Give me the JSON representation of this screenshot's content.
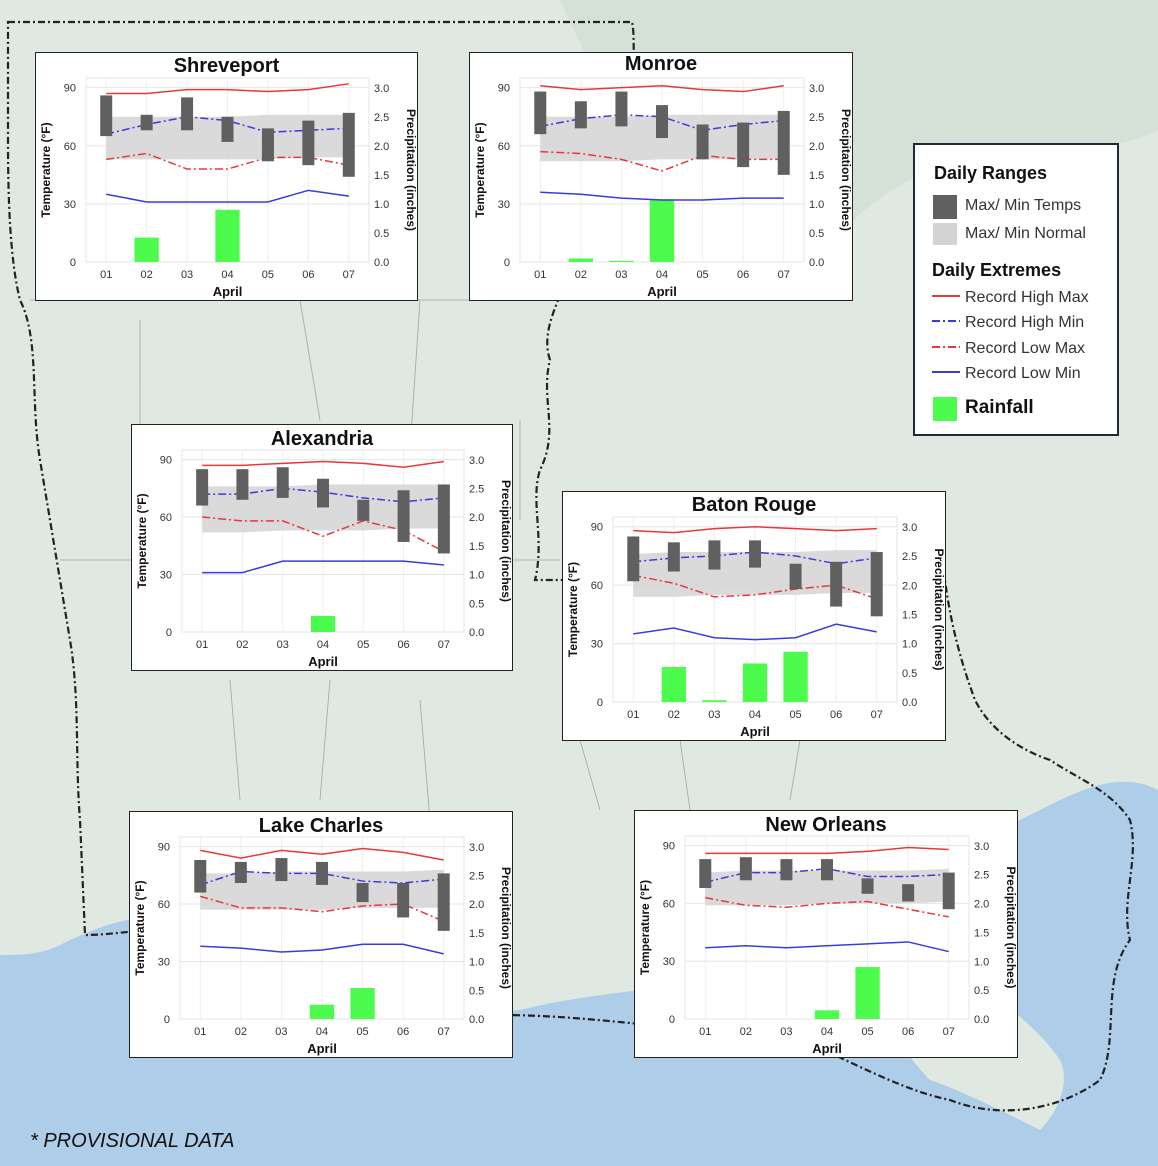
{
  "footnote": "* PROVISIONAL DATA",
  "legend": {
    "daily_ranges_title": "Daily Ranges",
    "max_min_temps": "Max/ Min Temps",
    "max_min_normal": "Max/ Min Normal",
    "daily_extremes_title": "Daily Extremes",
    "record_high_max": "Record High Max",
    "record_high_min": "Record High Min",
    "record_low_max": "Record Low Max",
    "record_low_min": "Record Low Min",
    "rainfall": "Rainfall"
  },
  "colors": {
    "record_high_max": "#e8383a",
    "record_high_min": "#3b3bdc",
    "record_low_max": "#e8383a",
    "record_low_min": "#3b3bdc",
    "temps_bar": "#606060",
    "normal_band": "#d3d3d3",
    "rainfall": "#4cfb4c",
    "map_land": "#dfe8e1",
    "map_water": "#aecde8"
  },
  "chart_data": [
    {
      "type": "bar",
      "title": "Shreveport",
      "xlabel": "April",
      "ylabel": "Temperature (°F)",
      "y2label": "Precipitation (inches)",
      "categories": [
        "01",
        "02",
        "03",
        "04",
        "05",
        "06",
        "07"
      ],
      "ylim": [
        0,
        95
      ],
      "y2lim": [
        0,
        3.17
      ],
      "yticks": [
        0,
        30,
        60,
        90
      ],
      "y2ticks": [
        0.0,
        0.5,
        1.0,
        1.5,
        2.0,
        2.5,
        3.0
      ],
      "temp_max": [
        86,
        76,
        85,
        75,
        69,
        73,
        77
      ],
      "temp_min": [
        65,
        68,
        68,
        62,
        52,
        50,
        44
      ],
      "normal_max": [
        75,
        75,
        75,
        75,
        76,
        76,
        76
      ],
      "normal_min": [
        53,
        53,
        53,
        53,
        53,
        54,
        54
      ],
      "record_high_max": [
        87,
        87,
        89,
        89,
        88,
        89,
        92
      ],
      "record_high_min": [
        66,
        71,
        75,
        73,
        67,
        68,
        69
      ],
      "record_low_max": [
        53,
        56,
        48,
        48,
        54,
        54,
        50
      ],
      "record_low_min": [
        35,
        31,
        31,
        31,
        31,
        37,
        34
      ],
      "rainfall": [
        0,
        0.42,
        0,
        0.9,
        0,
        0,
        0
      ]
    },
    {
      "type": "bar",
      "title": "Monroe",
      "xlabel": "April",
      "ylabel": "Temperature (°F)",
      "y2label": "Precipitation (inches)",
      "categories": [
        "01",
        "02",
        "03",
        "04",
        "05",
        "06",
        "07"
      ],
      "ylim": [
        0,
        95
      ],
      "y2lim": [
        0,
        3.17
      ],
      "yticks": [
        0,
        30,
        60,
        90
      ],
      "y2ticks": [
        0.0,
        0.5,
        1.0,
        1.5,
        2.0,
        2.5,
        3.0
      ],
      "temp_max": [
        88,
        83,
        88,
        81,
        71,
        72,
        78
      ],
      "temp_min": [
        66,
        69,
        70,
        64,
        53,
        49,
        45
      ],
      "normal_max": [
        75,
        75,
        75,
        76,
        76,
        76,
        76
      ],
      "normal_min": [
        52,
        52,
        52,
        53,
        53,
        53,
        53
      ],
      "record_high_max": [
        91,
        89,
        90,
        91,
        89,
        88,
        91
      ],
      "record_high_min": [
        70,
        74,
        76,
        75,
        68,
        71,
        73
      ],
      "record_low_max": [
        57,
        56,
        53,
        47,
        55,
        53,
        53
      ],
      "record_low_min": [
        36,
        35,
        33,
        32,
        32,
        33,
        33
      ],
      "rainfall": [
        0,
        0.06,
        0.02,
        1.08,
        0,
        0,
        0
      ]
    },
    {
      "type": "bar",
      "title": "Alexandria",
      "xlabel": "April",
      "ylabel": "Temperature (°F)",
      "y2label": "Precipitation (inches)",
      "categories": [
        "01",
        "02",
        "03",
        "04",
        "05",
        "06",
        "07"
      ],
      "ylim": [
        0,
        95
      ],
      "y2lim": [
        0,
        3.17
      ],
      "yticks": [
        0,
        30,
        60,
        90
      ],
      "y2ticks": [
        0.0,
        0.5,
        1.0,
        1.5,
        2.0,
        2.5,
        3.0
      ],
      "temp_max": [
        85,
        85,
        86,
        80,
        69,
        74,
        77
      ],
      "temp_min": [
        66,
        69,
        70,
        65,
        58,
        47,
        41
      ],
      "normal_max": [
        76,
        76,
        76,
        77,
        77,
        77,
        77
      ],
      "normal_min": [
        52,
        52,
        53,
        53,
        53,
        54,
        54
      ],
      "record_high_max": [
        87,
        87,
        88,
        89,
        88,
        86,
        89
      ],
      "record_high_min": [
        72,
        72,
        75,
        73,
        70,
        68,
        70
      ],
      "record_low_max": [
        60,
        58,
        58,
        50,
        58,
        53,
        42
      ],
      "record_low_min": [
        31,
        31,
        37,
        37,
        37,
        37,
        35
      ],
      "rainfall": [
        0,
        0,
        0,
        0.28,
        0,
        0,
        0
      ]
    },
    {
      "type": "bar",
      "title": "Baton Rouge",
      "xlabel": "April",
      "ylabel": "Temperature (°F)",
      "y2label": "Precipitation (inches)",
      "categories": [
        "01",
        "02",
        "03",
        "04",
        "05",
        "06",
        "07"
      ],
      "ylim": [
        0,
        95
      ],
      "y2lim": [
        0,
        3.17
      ],
      "yticks": [
        0,
        30,
        60,
        90
      ],
      "y2ticks": [
        0.0,
        0.5,
        1.0,
        1.5,
        2.0,
        2.5,
        3.0
      ],
      "temp_max": [
        85,
        82,
        83,
        83,
        71,
        72,
        77
      ],
      "temp_min": [
        62,
        67,
        68,
        69,
        58,
        49,
        44
      ],
      "normal_max": [
        76,
        77,
        77,
        77,
        77,
        78,
        78
      ],
      "normal_min": [
        54,
        54,
        55,
        55,
        55,
        56,
        56
      ],
      "record_high_max": [
        88,
        87,
        89,
        90,
        89,
        88,
        89
      ],
      "record_high_min": [
        72,
        74,
        75,
        77,
        75,
        71,
        74
      ],
      "record_low_max": [
        65,
        61,
        54,
        55,
        58,
        60,
        53
      ],
      "record_low_min": [
        35,
        38,
        33,
        32,
        33,
        40,
        36
      ],
      "rainfall": [
        0,
        0.6,
        0.03,
        0.66,
        0.86,
        0,
        0
      ]
    },
    {
      "type": "bar",
      "title": "Lake Charles",
      "xlabel": "April",
      "ylabel": "Temperature (°F)",
      "y2label": "Precipitation (inches)",
      "categories": [
        "01",
        "02",
        "03",
        "04",
        "05",
        "06",
        "07"
      ],
      "ylim": [
        0,
        95
      ],
      "y2lim": [
        0,
        3.17
      ],
      "yticks": [
        0,
        30,
        60,
        90
      ],
      "y2ticks": [
        0.0,
        0.5,
        1.0,
        1.5,
        2.0,
        2.5,
        3.0
      ],
      "temp_max": [
        83,
        82,
        84,
        82,
        71,
        71,
        76
      ],
      "temp_min": [
        66,
        71,
        72,
        70,
        61,
        53,
        46
      ],
      "normal_max": [
        76,
        76,
        77,
        77,
        77,
        77,
        78
      ],
      "normal_min": [
        57,
        57,
        57,
        57,
        58,
        58,
        58
      ],
      "record_high_max": [
        88,
        84,
        88,
        86,
        89,
        87,
        83
      ],
      "record_high_min": [
        70,
        77,
        76,
        76,
        72,
        71,
        73
      ],
      "record_low_max": [
        64,
        58,
        58,
        56,
        59,
        60,
        51
      ],
      "record_low_min": [
        38,
        37,
        35,
        36,
        39,
        39,
        34
      ],
      "rainfall": [
        0,
        0,
        0,
        0.25,
        0.54,
        0,
        0
      ]
    },
    {
      "type": "bar",
      "title": "New Orleans",
      "xlabel": "April",
      "ylabel": "Temperature (°F)",
      "y2label": "Precipitation (inches)",
      "categories": [
        "01",
        "02",
        "03",
        "04",
        "05",
        "06",
        "07"
      ],
      "ylim": [
        0,
        95
      ],
      "y2lim": [
        0,
        3.17
      ],
      "yticks": [
        0,
        30,
        60,
        90
      ],
      "y2ticks": [
        0.0,
        0.5,
        1.0,
        1.5,
        2.0,
        2.5,
        3.0
      ],
      "temp_max": [
        83,
        84,
        83,
        83,
        73,
        70,
        76
      ],
      "temp_min": [
        68,
        72,
        72,
        72,
        65,
        61,
        57
      ],
      "normal_max": [
        76,
        77,
        77,
        77,
        77,
        77,
        78
      ],
      "normal_min": [
        59,
        59,
        59,
        60,
        60,
        60,
        61
      ],
      "record_high_max": [
        86,
        86,
        86,
        86,
        87,
        89,
        88
      ],
      "record_high_min": [
        71,
        76,
        76,
        78,
        74,
        74,
        75
      ],
      "record_low_max": [
        63,
        59,
        58,
        60,
        61,
        57,
        53
      ],
      "record_low_min": [
        37,
        38,
        37,
        38,
        39,
        40,
        35
      ],
      "rainfall": [
        0,
        0,
        0,
        0.15,
        0.9,
        0,
        0
      ]
    }
  ]
}
